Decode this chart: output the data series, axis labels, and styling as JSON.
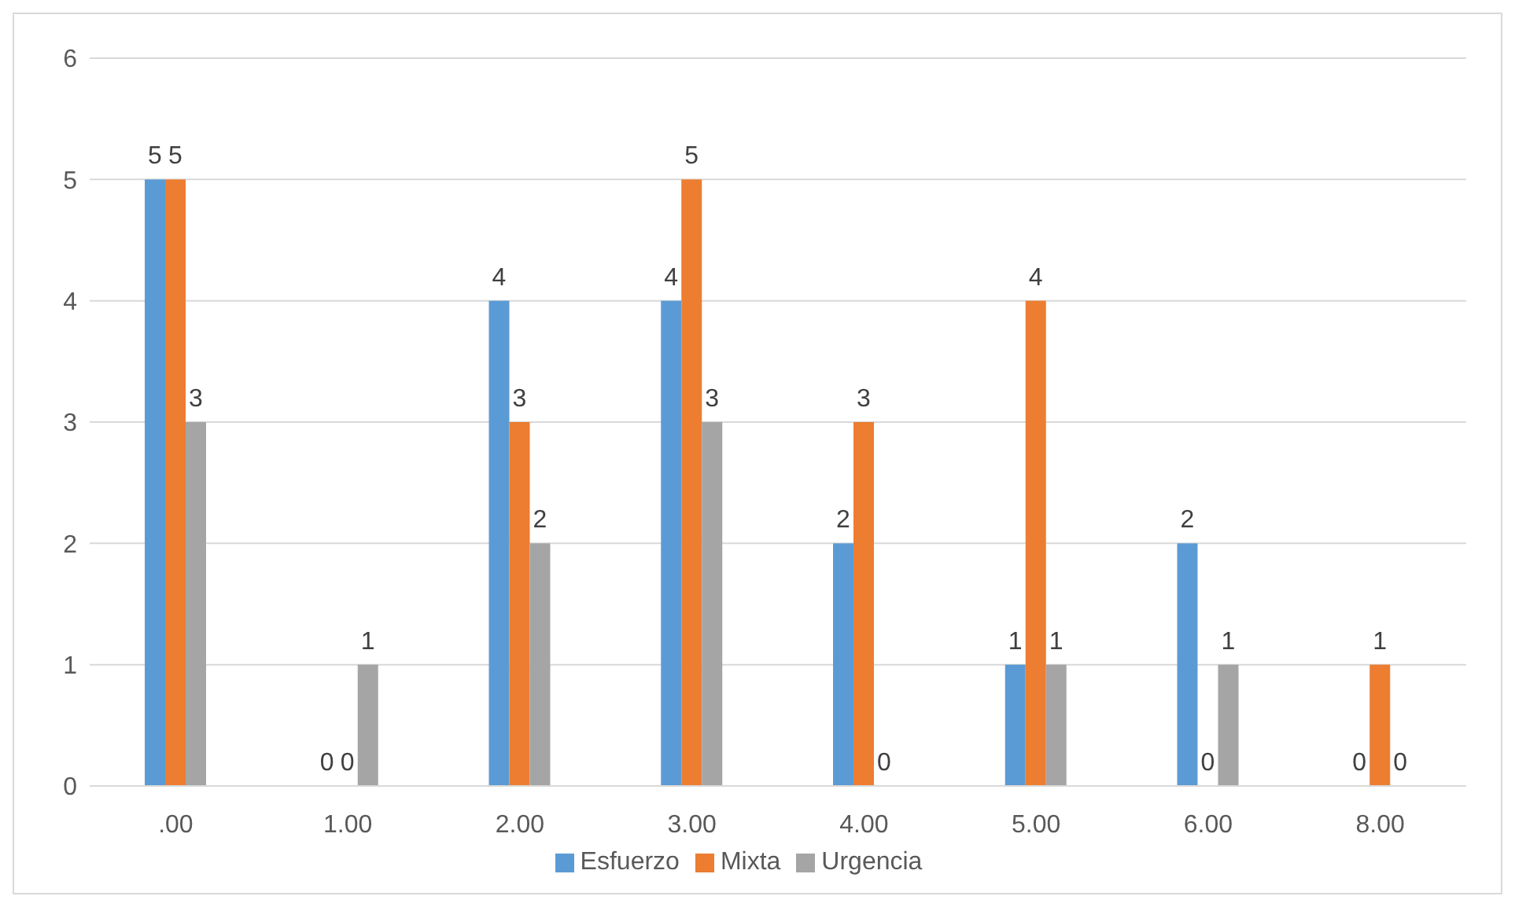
{
  "chart_data": {
    "type": "bar",
    "categories": [
      ".00",
      "1.00",
      "2.00",
      "3.00",
      "4.00",
      "5.00",
      "6.00",
      "8.00"
    ],
    "series": [
      {
        "name": "Esfuerzo",
        "color": "#5b9bd5",
        "values": [
          5,
          0,
          4,
          4,
          2,
          1,
          2,
          0
        ]
      },
      {
        "name": "Mixta",
        "color": "#ed7d31",
        "values": [
          5,
          0,
          3,
          5,
          3,
          4,
          0,
          1
        ]
      },
      {
        "name": "Urgencia",
        "color": "#a5a5a5",
        "values": [
          3,
          1,
          2,
          3,
          0,
          1,
          1,
          0
        ]
      }
    ],
    "ylim": [
      0,
      6
    ],
    "yticks": [
      0,
      1,
      2,
      3,
      4,
      5,
      6
    ],
    "grid": "y",
    "legend": "bottom",
    "data_labels": true
  }
}
